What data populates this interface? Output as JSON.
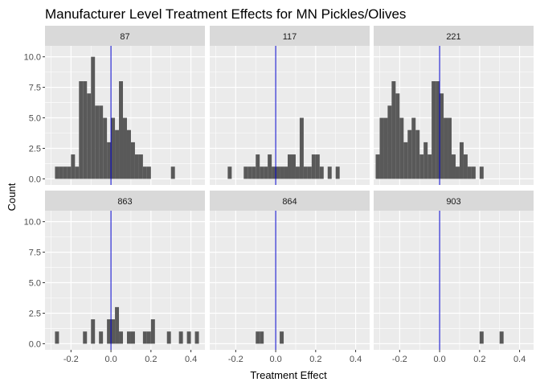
{
  "chart_data": {
    "type": "bar",
    "subtype": "faceted-histogram",
    "title": "Manufacturer Level Treatment Effects for MN Pickles/Olives",
    "xlabel": "Treatment Effect",
    "ylabel": "Count",
    "xlim": [
      -0.33,
      0.47
    ],
    "ylim": [
      -0.5,
      10.9
    ],
    "bin_width": 0.02,
    "x_ticks": [
      -0.2,
      0.0,
      0.2,
      0.4
    ],
    "x_tick_labels": [
      "-0.2",
      "0.0",
      "0.2",
      "0.4"
    ],
    "y_ticks": [
      0,
      2.5,
      5,
      7.5,
      10
    ],
    "y_tick_labels": [
      "0.0",
      "2.5",
      "5.0",
      "7.5",
      "10.0"
    ],
    "reference_line": {
      "x": 0.0,
      "color": "#0000cc"
    },
    "bar_color": "#595959",
    "panel_background": "#ebebeb",
    "strip_background": "#d9d9d9",
    "grid": true,
    "facets": [
      {
        "label": "87",
        "bins": [
          {
            "x": -0.27,
            "count": 1
          },
          {
            "x": -0.25,
            "count": 1
          },
          {
            "x": -0.23,
            "count": 1
          },
          {
            "x": -0.21,
            "count": 1
          },
          {
            "x": -0.19,
            "count": 2
          },
          {
            "x": -0.17,
            "count": 1
          },
          {
            "x": -0.15,
            "count": 8
          },
          {
            "x": -0.13,
            "count": 8
          },
          {
            "x": -0.11,
            "count": 7
          },
          {
            "x": -0.09,
            "count": 10
          },
          {
            "x": -0.07,
            "count": 6
          },
          {
            "x": -0.05,
            "count": 6
          },
          {
            "x": -0.03,
            "count": 5
          },
          {
            "x": -0.01,
            "count": 3
          },
          {
            "x": 0.01,
            "count": 5
          },
          {
            "x": 0.03,
            "count": 4
          },
          {
            "x": 0.05,
            "count": 8
          },
          {
            "x": 0.07,
            "count": 5
          },
          {
            "x": 0.09,
            "count": 4
          },
          {
            "x": 0.11,
            "count": 3
          },
          {
            "x": 0.13,
            "count": 2
          },
          {
            "x": 0.15,
            "count": 2
          },
          {
            "x": 0.17,
            "count": 1
          },
          {
            "x": 0.19,
            "count": 1
          },
          {
            "x": 0.31,
            "count": 1
          }
        ]
      },
      {
        "label": "117",
        "bins": [
          {
            "x": -0.23,
            "count": 1
          },
          {
            "x": -0.15,
            "count": 1
          },
          {
            "x": -0.13,
            "count": 1
          },
          {
            "x": -0.11,
            "count": 1
          },
          {
            "x": -0.09,
            "count": 2
          },
          {
            "x": -0.07,
            "count": 1
          },
          {
            "x": -0.05,
            "count": 1
          },
          {
            "x": -0.03,
            "count": 2
          },
          {
            "x": -0.01,
            "count": 1
          },
          {
            "x": 0.01,
            "count": 1
          },
          {
            "x": 0.03,
            "count": 1
          },
          {
            "x": 0.05,
            "count": 1
          },
          {
            "x": 0.07,
            "count": 2
          },
          {
            "x": 0.09,
            "count": 2
          },
          {
            "x": 0.11,
            "count": 1
          },
          {
            "x": 0.13,
            "count": 5
          },
          {
            "x": 0.15,
            "count": 1
          },
          {
            "x": 0.17,
            "count": 1
          },
          {
            "x": 0.19,
            "count": 2
          },
          {
            "x": 0.21,
            "count": 2
          },
          {
            "x": 0.23,
            "count": 1
          },
          {
            "x": 0.27,
            "count": 1
          },
          {
            "x": 0.31,
            "count": 1
          }
        ]
      },
      {
        "label": "221",
        "bins": [
          {
            "x": -0.31,
            "count": 2
          },
          {
            "x": -0.29,
            "count": 5
          },
          {
            "x": -0.27,
            "count": 5
          },
          {
            "x": -0.25,
            "count": 6
          },
          {
            "x": -0.23,
            "count": 8
          },
          {
            "x": -0.21,
            "count": 7
          },
          {
            "x": -0.19,
            "count": 5
          },
          {
            "x": -0.17,
            "count": 3
          },
          {
            "x": -0.15,
            "count": 4
          },
          {
            "x": -0.13,
            "count": 5
          },
          {
            "x": -0.11,
            "count": 4
          },
          {
            "x": -0.09,
            "count": 2
          },
          {
            "x": -0.07,
            "count": 3
          },
          {
            "x": -0.05,
            "count": 2
          },
          {
            "x": -0.03,
            "count": 8
          },
          {
            "x": -0.01,
            "count": 8
          },
          {
            "x": 0.01,
            "count": 7
          },
          {
            "x": 0.03,
            "count": 5
          },
          {
            "x": 0.05,
            "count": 5
          },
          {
            "x": 0.07,
            "count": 2
          },
          {
            "x": 0.09,
            "count": 1
          },
          {
            "x": 0.11,
            "count": 3
          },
          {
            "x": 0.13,
            "count": 2
          },
          {
            "x": 0.15,
            "count": 1
          },
          {
            "x": 0.17,
            "count": 1
          },
          {
            "x": 0.21,
            "count": 1
          }
        ]
      },
      {
        "label": "863",
        "bins": [
          {
            "x": -0.27,
            "count": 1
          },
          {
            "x": -0.13,
            "count": 1
          },
          {
            "x": -0.09,
            "count": 2
          },
          {
            "x": -0.05,
            "count": 1
          },
          {
            "x": -0.01,
            "count": 2
          },
          {
            "x": 0.01,
            "count": 2
          },
          {
            "x": 0.03,
            "count": 3
          },
          {
            "x": 0.05,
            "count": 1
          },
          {
            "x": 0.09,
            "count": 1
          },
          {
            "x": 0.11,
            "count": 1
          },
          {
            "x": 0.17,
            "count": 1
          },
          {
            "x": 0.19,
            "count": 1
          },
          {
            "x": 0.21,
            "count": 2
          },
          {
            "x": 0.29,
            "count": 1
          },
          {
            "x": 0.35,
            "count": 1
          },
          {
            "x": 0.39,
            "count": 1
          },
          {
            "x": 0.43,
            "count": 1
          }
        ]
      },
      {
        "label": "864",
        "bins": [
          {
            "x": -0.09,
            "count": 1
          },
          {
            "x": -0.07,
            "count": 1
          },
          {
            "x": 0.03,
            "count": 1
          }
        ]
      },
      {
        "label": "903",
        "bins": [
          {
            "x": 0.21,
            "count": 1
          },
          {
            "x": 0.31,
            "count": 1
          }
        ]
      }
    ]
  }
}
